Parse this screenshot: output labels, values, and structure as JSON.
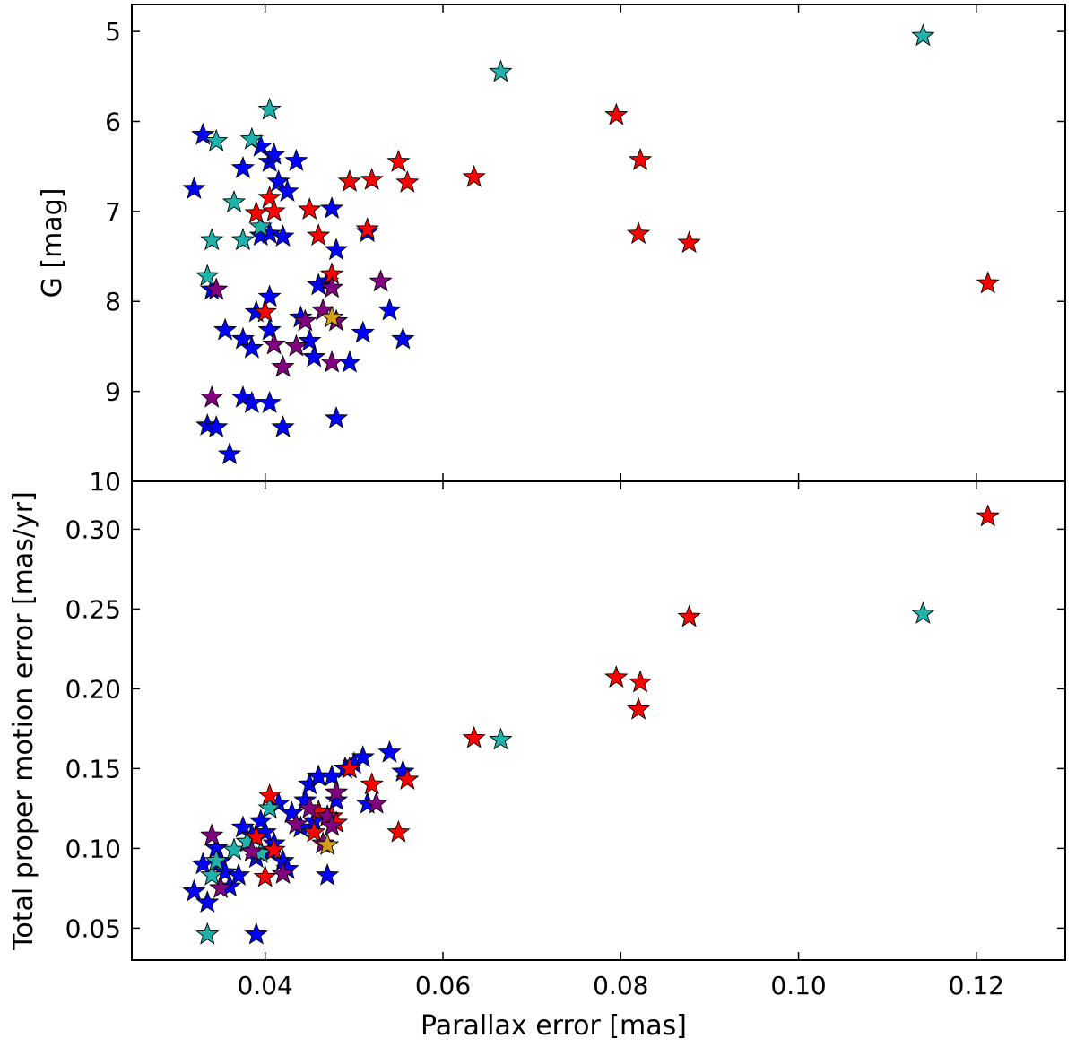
{
  "chart_data": [
    {
      "type": "scatter",
      "panel": "top",
      "title": "",
      "xlabel": "",
      "ylabel": "G [mag]",
      "xlim": [
        0.025,
        0.13
      ],
      "ylim": [
        10,
        4.7
      ],
      "y_inverted": true,
      "grid": false,
      "marker": "star",
      "xticks": [
        0.04,
        0.06,
        0.08,
        0.1,
        0.12
      ],
      "xtick_labels": [
        "",
        "",
        "",
        "",
        ""
      ],
      "yticks": [
        5,
        6,
        7,
        8,
        9,
        10
      ],
      "ytick_labels": [
        "5",
        "6",
        "7",
        "8",
        "9",
        "10"
      ],
      "series": [
        {
          "name": "blue",
          "color": "#0000ff",
          "points": [
            [
              0.032,
              6.75
            ],
            [
              0.033,
              6.15
            ],
            [
              0.0375,
              6.52
            ],
            [
              0.0395,
              6.28
            ],
            [
              0.0405,
              6.45
            ],
            [
              0.041,
              6.37
            ],
            [
              0.0415,
              6.67
            ],
            [
              0.0435,
              6.44
            ],
            [
              0.0425,
              6.78
            ],
            [
              0.0395,
              7.27
            ],
            [
              0.0405,
              7.25
            ],
            [
              0.042,
              7.28
            ],
            [
              0.0475,
              6.97
            ],
            [
              0.048,
              7.43
            ],
            [
              0.0515,
              7.23
            ],
            [
              0.034,
              7.87
            ],
            [
              0.0405,
              7.95
            ],
            [
              0.047,
              7.78
            ],
            [
              0.046,
              7.82
            ],
            [
              0.039,
              8.12
            ],
            [
              0.0355,
              8.32
            ],
            [
              0.0375,
              8.42
            ],
            [
              0.0385,
              8.52
            ],
            [
              0.0405,
              8.32
            ],
            [
              0.044,
              8.18
            ],
            [
              0.045,
              8.44
            ],
            [
              0.0455,
              8.62
            ],
            [
              0.0495,
              8.68
            ],
            [
              0.051,
              8.35
            ],
            [
              0.054,
              8.1
            ],
            [
              0.0555,
              8.42
            ],
            [
              0.0335,
              9.38
            ],
            [
              0.0345,
              9.4
            ],
            [
              0.0375,
              9.07
            ],
            [
              0.0385,
              9.13
            ],
            [
              0.0405,
              9.13
            ],
            [
              0.036,
              9.7
            ],
            [
              0.042,
              9.4
            ],
            [
              0.048,
              9.3
            ]
          ]
        },
        {
          "name": "teal",
          "color": "#20b2aa",
          "points": [
            [
              0.0345,
              6.22
            ],
            [
              0.0385,
              6.2
            ],
            [
              0.0405,
              5.87
            ],
            [
              0.0365,
              6.9
            ],
            [
              0.034,
              7.32
            ],
            [
              0.0375,
              7.32
            ],
            [
              0.0395,
              7.17
            ],
            [
              0.0335,
              7.72
            ],
            [
              0.0665,
              5.45
            ],
            [
              0.114,
              5.05
            ]
          ]
        },
        {
          "name": "red",
          "color": "#ff0000",
          "points": [
            [
              0.039,
              7.02
            ],
            [
              0.0405,
              6.85
            ],
            [
              0.041,
              7.0
            ],
            [
              0.045,
              6.98
            ],
            [
              0.046,
              7.27
            ],
            [
              0.0475,
              7.7
            ],
            [
              0.04,
              8.12
            ],
            [
              0.0495,
              6.67
            ],
            [
              0.052,
              6.65
            ],
            [
              0.055,
              6.45
            ],
            [
              0.056,
              6.68
            ],
            [
              0.0515,
              7.2
            ],
            [
              0.0635,
              6.62
            ],
            [
              0.0795,
              5.93
            ],
            [
              0.0822,
              6.43
            ],
            [
              0.082,
              7.25
            ],
            [
              0.0877,
              7.35
            ],
            [
              0.1213,
              7.8
            ]
          ]
        },
        {
          "name": "purple",
          "color": "#800080",
          "points": [
            [
              0.0345,
              7.87
            ],
            [
              0.041,
              8.48
            ],
            [
              0.0435,
              8.5
            ],
            [
              0.0445,
              8.22
            ],
            [
              0.0465,
              8.1
            ],
            [
              0.0475,
              7.85
            ],
            [
              0.0475,
              8.68
            ],
            [
              0.048,
              8.22
            ],
            [
              0.042,
              8.73
            ],
            [
              0.034,
              9.07
            ],
            [
              0.053,
              7.78
            ]
          ]
        },
        {
          "name": "orange",
          "color": "#d4a017",
          "points": [
            [
              0.0475,
              8.18
            ]
          ]
        }
      ]
    },
    {
      "type": "scatter",
      "panel": "bottom",
      "title": "",
      "xlabel": "Parallax error [mas]",
      "ylabel": "Total proper motion error [mas/yr]",
      "xlim": [
        0.025,
        0.13
      ],
      "ylim": [
        0.03,
        0.33
      ],
      "grid": false,
      "marker": "star",
      "xticks": [
        0.04,
        0.06,
        0.08,
        0.1,
        0.12
      ],
      "xtick_labels": [
        "0.04",
        "0.06",
        "0.08",
        "0.10",
        "0.12"
      ],
      "yticks": [
        0.05,
        0.1,
        0.15,
        0.2,
        0.25,
        0.3
      ],
      "ytick_labels": [
        "0.05",
        "0.10",
        "0.15",
        "0.20",
        "0.25",
        "0.30"
      ],
      "series": [
        {
          "name": "blue",
          "color": "#0000ff",
          "points": [
            [
              0.032,
              0.073
            ],
            [
              0.033,
              0.09
            ],
            [
              0.0335,
              0.066
            ],
            [
              0.0345,
              0.1
            ],
            [
              0.035,
              0.092
            ],
            [
              0.0355,
              0.085
            ],
            [
              0.036,
              0.076
            ],
            [
              0.037,
              0.083
            ],
            [
              0.0375,
              0.113
            ],
            [
              0.038,
              0.104
            ],
            [
              0.0385,
              0.108
            ],
            [
              0.039,
              0.094
            ],
            [
              0.039,
              0.046
            ],
            [
              0.0395,
              0.117
            ],
            [
              0.04,
              0.11
            ],
            [
              0.0405,
              0.098
            ],
            [
              0.041,
              0.103
            ],
            [
              0.0415,
              0.128
            ],
            [
              0.042,
              0.092
            ],
            [
              0.0425,
              0.087
            ],
            [
              0.043,
              0.122
            ],
            [
              0.044,
              0.113
            ],
            [
              0.0445,
              0.13
            ],
            [
              0.045,
              0.14
            ],
            [
              0.0455,
              0.117
            ],
            [
              0.046,
              0.145
            ],
            [
              0.047,
              0.083
            ],
            [
              0.0475,
              0.145
            ],
            [
              0.048,
              0.13
            ],
            [
              0.049,
              0.15
            ],
            [
              0.05,
              0.153
            ],
            [
              0.051,
              0.157
            ],
            [
              0.0515,
              0.128
            ],
            [
              0.054,
              0.16
            ],
            [
              0.0555,
              0.148
            ]
          ]
        },
        {
          "name": "teal",
          "color": "#20b2aa",
          "points": [
            [
              0.0335,
              0.046
            ],
            [
              0.034,
              0.083
            ],
            [
              0.0345,
              0.092
            ],
            [
              0.0365,
              0.099
            ],
            [
              0.038,
              0.104
            ],
            [
              0.0395,
              0.097
            ],
            [
              0.0405,
              0.125
            ],
            [
              0.0665,
              0.168
            ],
            [
              0.114,
              0.247
            ]
          ]
        },
        {
          "name": "red",
          "color": "#ff0000",
          "points": [
            [
              0.039,
              0.107
            ],
            [
              0.04,
              0.082
            ],
            [
              0.0405,
              0.133
            ],
            [
              0.041,
              0.099
            ],
            [
              0.0455,
              0.11
            ],
            [
              0.046,
              0.123
            ],
            [
              0.0475,
              0.12
            ],
            [
              0.048,
              0.116
            ],
            [
              0.0495,
              0.15
            ],
            [
              0.052,
              0.14
            ],
            [
              0.055,
              0.11
            ],
            [
              0.056,
              0.143
            ],
            [
              0.0635,
              0.169
            ],
            [
              0.0795,
              0.207
            ],
            [
              0.0822,
              0.204
            ],
            [
              0.082,
              0.187
            ],
            [
              0.0877,
              0.245
            ],
            [
              0.1213,
              0.308
            ]
          ]
        },
        {
          "name": "purple",
          "color": "#800080",
          "points": [
            [
              0.034,
              0.108
            ],
            [
              0.035,
              0.075
            ],
            [
              0.0385,
              0.098
            ],
            [
              0.042,
              0.084
            ],
            [
              0.0435,
              0.115
            ],
            [
              0.045,
              0.125
            ],
            [
              0.0465,
              0.103
            ],
            [
              0.047,
              0.12
            ],
            [
              0.0475,
              0.114
            ],
            [
              0.048,
              0.135
            ],
            [
              0.0525,
              0.128
            ]
          ]
        },
        {
          "name": "orange",
          "color": "#d4a017",
          "points": [
            [
              0.047,
              0.102
            ]
          ]
        }
      ]
    }
  ]
}
